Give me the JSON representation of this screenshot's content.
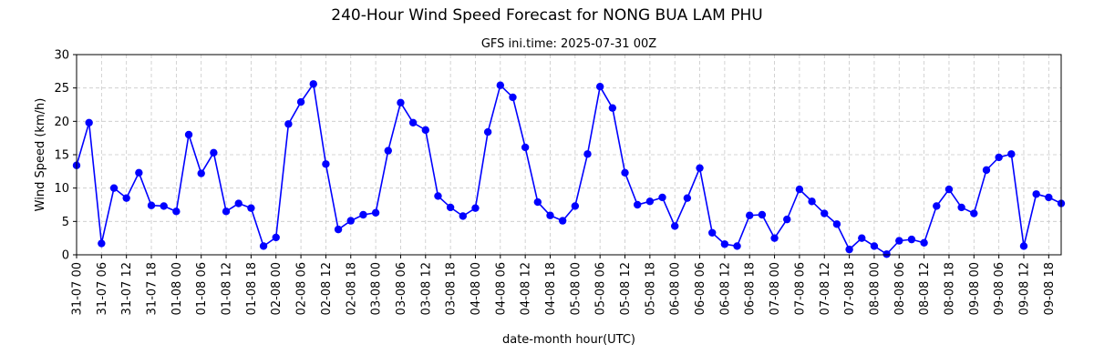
{
  "chart_data": {
    "type": "line",
    "title": "240-Hour Wind Speed Forecast for NONG BUA LAM PHU",
    "subtitle": "GFS ini.time: 2025-07-31 00Z",
    "xlabel": "date-month hour(UTC)",
    "ylabel": "Wind Speed (km/h)",
    "ylim": [
      0,
      30
    ],
    "yticks": [
      0,
      5,
      10,
      15,
      20,
      25,
      30
    ],
    "grid": true,
    "line_color": "#0000ff",
    "xtick_labels": [
      "31-07 00",
      "31-07 06",
      "31-07 12",
      "31-07 18",
      "01-08 00",
      "01-08 06",
      "01-08 12",
      "01-08 18",
      "02-08 00",
      "02-08 06",
      "02-08 12",
      "02-08 18",
      "03-08 00",
      "03-08 06",
      "03-08 12",
      "03-08 18",
      "04-08 00",
      "04-08 06",
      "04-08 12",
      "04-08 18",
      "05-08 00",
      "05-08 06",
      "05-08 12",
      "05-08 18",
      "06-08 00",
      "06-08 06",
      "06-08 12",
      "06-08 18",
      "07-08 00",
      "07-08 06",
      "07-08 12",
      "07-08 18",
      "08-08 00",
      "08-08 06",
      "08-08 12",
      "08-08 18",
      "09-08 00",
      "09-08 06",
      "09-08 12",
      "09-08 18"
    ],
    "series": [
      {
        "x_step_hours": 3,
        "values": [
          13.4,
          19.8,
          1.7,
          10.0,
          8.5,
          12.3,
          7.4,
          7.3,
          6.5,
          18.0,
          12.2,
          15.3,
          6.5,
          7.7,
          7.0,
          1.3,
          2.6,
          19.6,
          22.9,
          25.6,
          13.6,
          3.8,
          5.1,
          6.0,
          6.3,
          15.6,
          22.8,
          19.8,
          18.7,
          8.8,
          7.1,
          5.8,
          7.0,
          18.4,
          25.4,
          23.6,
          16.1,
          7.9,
          5.9,
          5.1,
          7.3,
          15.1,
          25.2,
          22.0,
          12.3,
          7.5,
          8.0,
          8.6,
          4.3,
          8.5,
          13.0,
          3.3,
          1.6,
          1.3,
          5.9,
          6.0,
          2.5,
          5.3,
          9.8,
          8.0,
          6.2,
          4.6,
          0.8,
          2.5,
          1.3,
          0.1,
          2.1,
          2.3,
          1.8,
          7.3,
          9.8,
          7.1,
          6.2,
          12.7,
          14.6,
          15.1,
          1.3,
          9.1,
          8.6,
          7.7
        ]
      }
    ]
  }
}
